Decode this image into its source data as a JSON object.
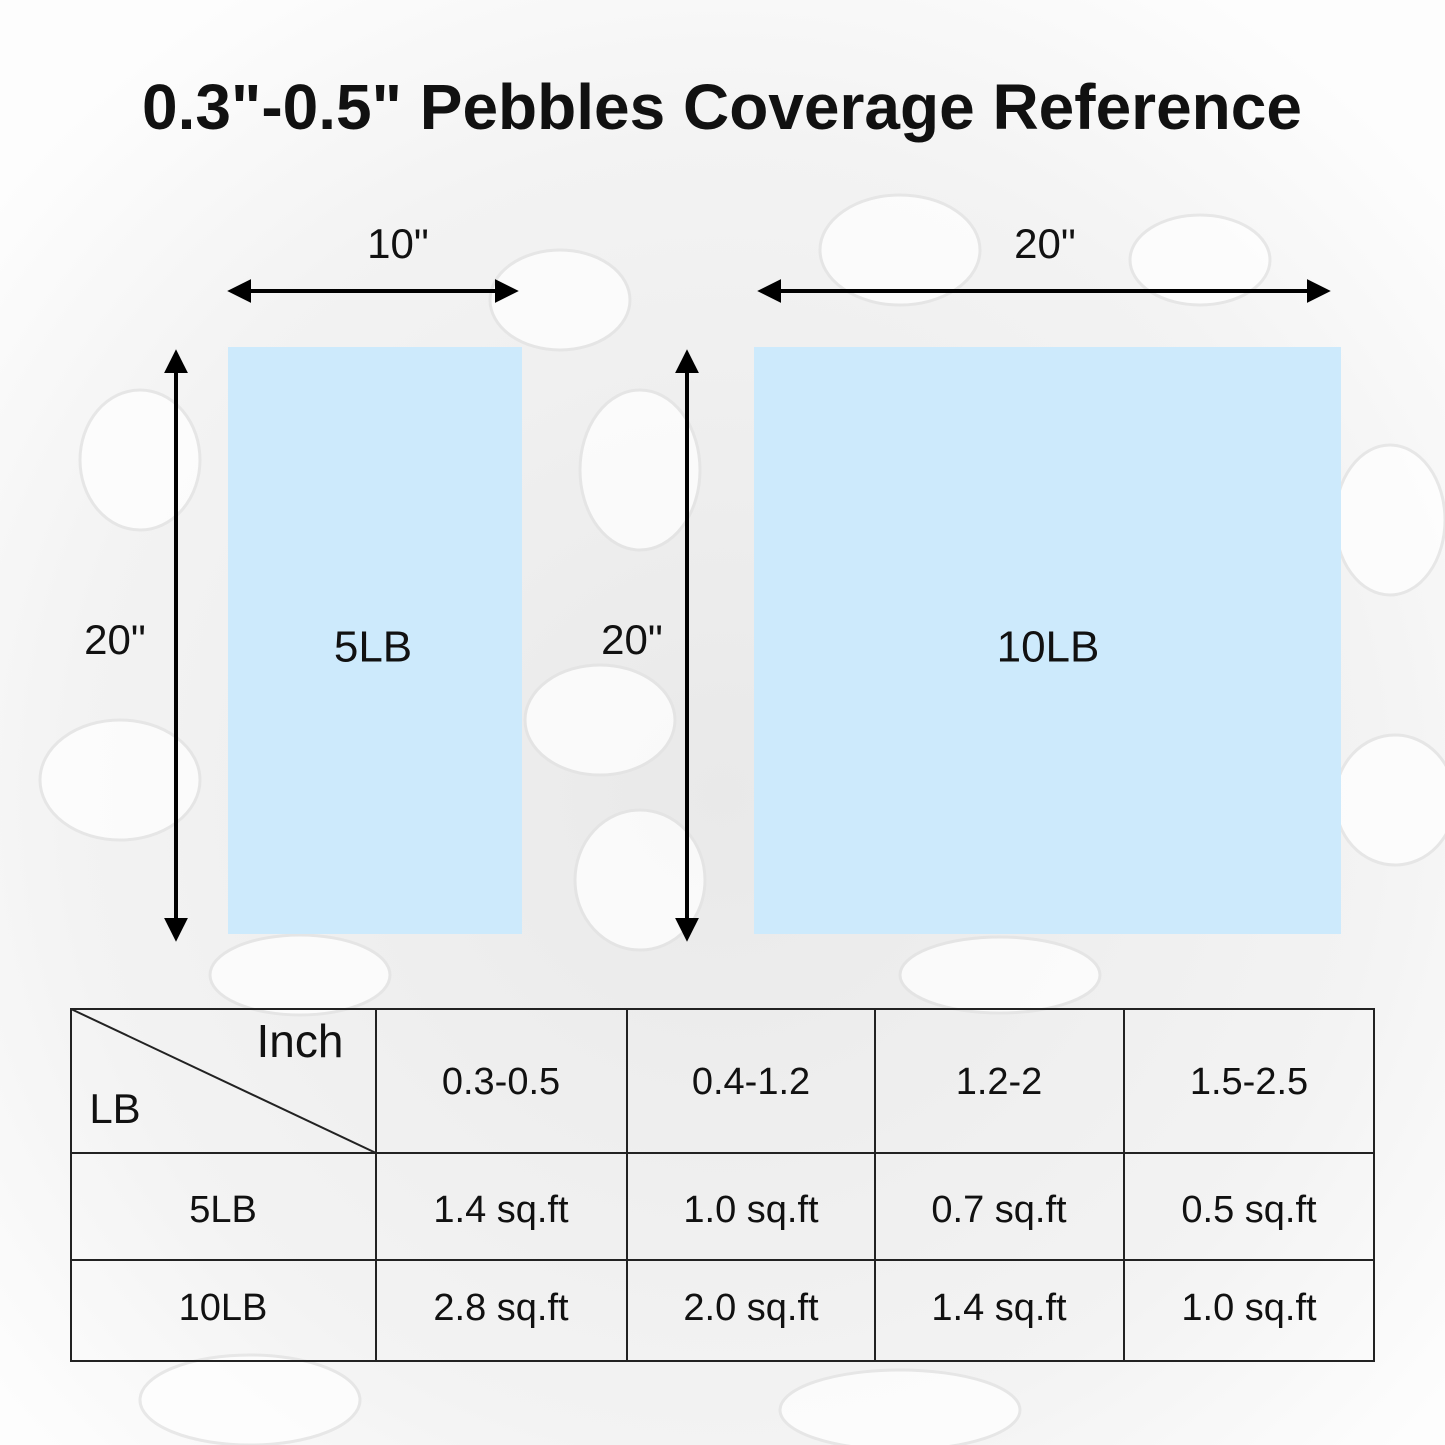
{
  "title": "0.3\"-0.5\" Pebbles Coverage Reference",
  "diagrams": [
    {
      "width_label": "10\"",
      "height_label": "20\"",
      "label": "5LB"
    },
    {
      "width_label": "20\"",
      "height_label": "20\"",
      "label": "10LB"
    }
  ],
  "table": {
    "corner": {
      "column_header": "Inch",
      "row_header": "LB"
    },
    "columns": [
      "0.3-0.5",
      "0.4-1.2",
      "1.2-2",
      "1.5-2.5"
    ],
    "rows": [
      [
        "5LB",
        "1.4 sq.ft",
        "1.0 sq.ft",
        "0.7 sq.ft",
        "0.5 sq.ft"
      ],
      [
        "10LB",
        "2.8 sq.ft",
        "2.0 sq.ft",
        "1.4 sq.ft",
        "1.0 sq.ft"
      ]
    ]
  }
}
